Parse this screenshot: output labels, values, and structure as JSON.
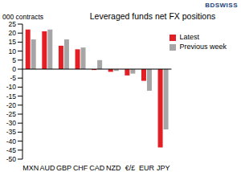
{
  "chart_data": {
    "type": "bar",
    "title": "Leveraged funds net FX positions",
    "y_label": "000 contracts",
    "annotation": "BDSWISS",
    "categories": [
      "MXN",
      "AUD",
      "GBP",
      "CHF",
      "CAD",
      "NZD",
      "€/£",
      "EUR",
      "JPY"
    ],
    "series": [
      {
        "name": "Latest",
        "color": "#e31e24",
        "values": [
          22,
          21,
          13,
          11,
          -0.5,
          -1.5,
          -3.5,
          -6.5,
          -43.5
        ]
      },
      {
        "name": "Previous week",
        "color": "#a6a6a6",
        "values": [
          16.5,
          22,
          16.5,
          12,
          5,
          -1,
          -2.5,
          -12,
          -33.5
        ]
      }
    ],
    "ylim": [
      -50,
      25
    ],
    "yticks": [
      -50,
      -45,
      -40,
      -35,
      -30,
      -25,
      -20,
      -15,
      -10,
      -5,
      0,
      5,
      10,
      15,
      20,
      25
    ],
    "grid": false,
    "legend": "upper right"
  }
}
